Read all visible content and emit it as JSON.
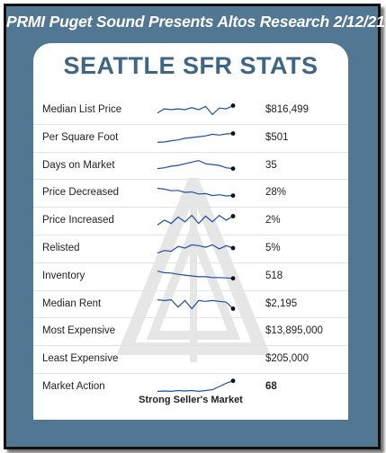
{
  "header": "PRMI Puget Sound Presents Altos Research 2/12/21",
  "title": "SEATTLE SFR STATS",
  "rows": [
    {
      "label": "Median List Price",
      "value": "$816,499",
      "trend": [
        0.3,
        0.55,
        0.5,
        0.55,
        0.5,
        0.62,
        0.5,
        0.7,
        0.2,
        0.6,
        0.55,
        0.75
      ]
    },
    {
      "label": "Per Square Foot",
      "value": "$501",
      "trend": [
        0.2,
        0.22,
        0.3,
        0.35,
        0.45,
        0.5,
        0.55,
        0.6,
        0.7,
        0.65,
        0.72,
        0.75
      ]
    },
    {
      "label": "Days on Market",
      "value": "35",
      "trend": [
        0.3,
        0.35,
        0.45,
        0.5,
        0.6,
        0.7,
        0.8,
        0.6,
        0.55,
        0.5,
        0.35,
        0.3
      ]
    },
    {
      "label": "Price Decreased",
      "value": "28%",
      "trend": [
        0.75,
        0.7,
        0.6,
        0.62,
        0.5,
        0.52,
        0.4,
        0.42,
        0.3,
        0.35,
        0.28,
        0.3
      ]
    },
    {
      "label": "Price Increased",
      "value": "2%",
      "trend": [
        0.2,
        0.5,
        0.3,
        0.7,
        0.4,
        0.8,
        0.3,
        0.75,
        0.4,
        0.8,
        0.5,
        0.75
      ]
    },
    {
      "label": "Relisted",
      "value": "5%",
      "trend": [
        0.2,
        0.35,
        0.3,
        0.6,
        0.5,
        0.7,
        0.65,
        0.55,
        0.7,
        0.45,
        0.65,
        0.5
      ]
    },
    {
      "label": "Inventory",
      "value": "518",
      "trend": [
        0.8,
        0.7,
        0.68,
        0.6,
        0.55,
        0.5,
        0.45,
        0.45,
        0.4,
        0.4,
        0.38,
        0.35
      ]
    },
    {
      "label": "Median Rent",
      "value": "$2,195",
      "trend": [
        0.75,
        0.7,
        0.75,
        0.3,
        0.7,
        0.2,
        0.7,
        0.65,
        0.7,
        0.65,
        0.6,
        0.2
      ]
    },
    {
      "label": "Most Expensive",
      "value": "$13,895,000",
      "trend": []
    },
    {
      "label": "Least Expensive",
      "value": "$205,000",
      "trend": []
    },
    {
      "label": "Market Action",
      "value": "68",
      "trend": [
        0.2,
        0.22,
        0.2,
        0.25,
        0.22,
        0.25,
        0.2,
        0.25,
        0.3,
        0.5,
        0.7,
        0.85
      ],
      "bold": true
    }
  ],
  "footer": "Strong Seller's Market",
  "colors": {
    "frame": "#527792",
    "title": "#3f6682",
    "sparkline": "#1f4f9e"
  }
}
